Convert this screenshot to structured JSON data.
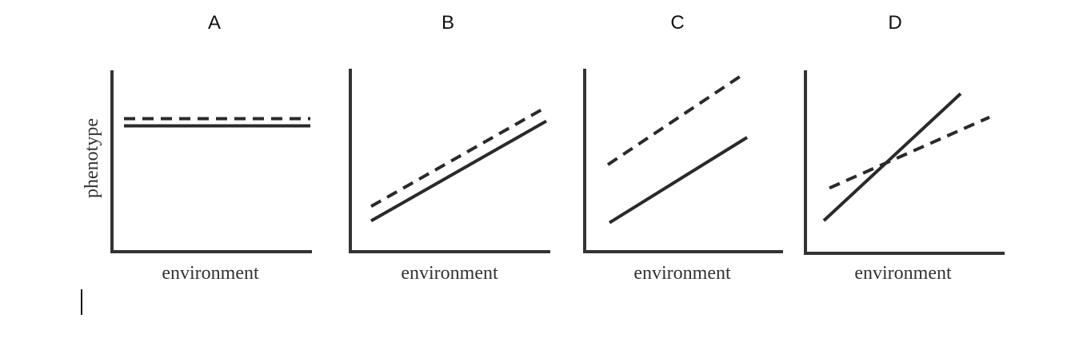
{
  "figure": {
    "y_axis_label": "phenotype",
    "x_axis_label": "environment"
  },
  "colors": {
    "axis": "#333333",
    "lines": "#2a2a2a",
    "background": "#ffffff"
  },
  "panels": [
    {
      "label": "A",
      "x_axis_label": "environment",
      "y_axis_label": "phenotype",
      "series": [
        {
          "style": "dashed",
          "y_start": 0.74,
          "y_end": 0.74
        },
        {
          "style": "solid",
          "y_start": 0.7,
          "y_end": 0.7
        }
      ]
    },
    {
      "label": "B",
      "x_axis_label": "environment",
      "y_axis_label": "",
      "series": [
        {
          "style": "dashed",
          "y_start": 0.25,
          "y_end": 0.79
        },
        {
          "style": "solid",
          "y_start": 0.17,
          "y_end": 0.72
        }
      ]
    },
    {
      "label": "C",
      "x_axis_label": "environment",
      "y_axis_label": "",
      "series": [
        {
          "style": "dashed",
          "y_start": 0.48,
          "y_end": 0.98
        },
        {
          "style": "solid",
          "y_start": 0.16,
          "y_end": 0.63
        }
      ]
    },
    {
      "label": "D",
      "x_axis_label": "environment",
      "y_axis_label": "",
      "series": [
        {
          "style": "dashed",
          "y_start": 0.36,
          "y_end": 0.75
        },
        {
          "style": "solid",
          "y_start": 0.18,
          "y_end": 0.88
        }
      ]
    }
  ]
}
